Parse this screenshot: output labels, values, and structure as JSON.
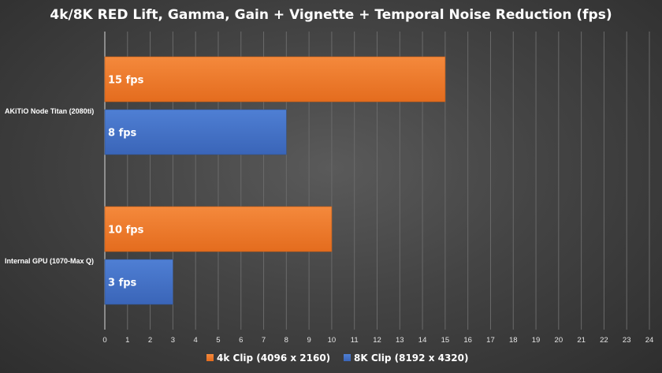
{
  "chart_data": {
    "type": "bar",
    "orientation": "horizontal",
    "title": "4k/8K RED Lift, Gamma, Gain + Vignette + Temporal Noise Reduction (fps)",
    "categories": [
      "AKiTiO Node Titan (2080ti)",
      "Internal GPU (1070-Max Q)"
    ],
    "series": [
      {
        "name": "4k Clip (4096 x 2160)",
        "color": "#ed7d31",
        "values": [
          15,
          10
        ],
        "labels": [
          "15 fps",
          "10 fps"
        ]
      },
      {
        "name": "8K Clip (8192 x 4320)",
        "color": "#4472c4",
        "values": [
          8,
          3
        ],
        "labels": [
          "8 fps",
          "3 fps"
        ]
      }
    ],
    "xlim": [
      0,
      24
    ],
    "xticks": [
      0,
      1,
      2,
      3,
      4,
      5,
      6,
      7,
      8,
      9,
      10,
      11,
      12,
      13,
      14,
      15,
      16,
      17,
      18,
      19,
      20,
      21,
      22,
      23,
      24
    ],
    "grid": true,
    "legend_position": "bottom"
  }
}
